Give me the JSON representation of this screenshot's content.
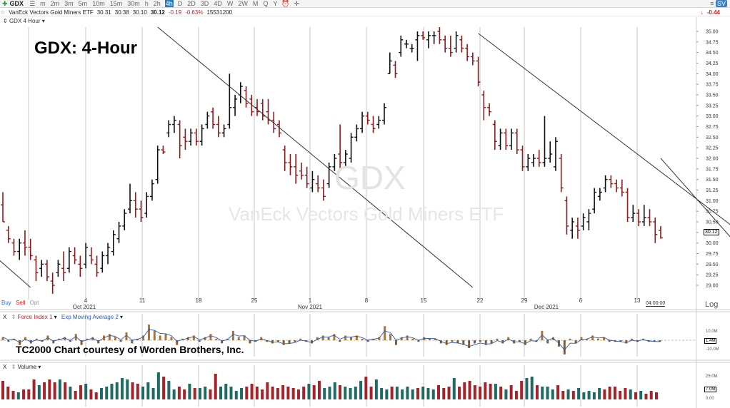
{
  "toolbar": {
    "symbol": "GDX",
    "intervals": [
      "m",
      "2m",
      "3m",
      "5m",
      "10m",
      "15m",
      "30m",
      "h",
      "2h",
      "4h",
      "D",
      "2D",
      "3D",
      "4D",
      "W",
      "2W",
      "M",
      "Q",
      "Y"
    ],
    "selected_interval": "4h",
    "right_badge": "SV",
    "right_change": "-0.44"
  },
  "quote": {
    "name": "VanEck Vectors Gold Miners ETF",
    "open": "30.31",
    "high": "30.38",
    "low": "30.10",
    "last": "30.12",
    "change": "-0.19",
    "change_pct": "-0.63%",
    "volume": "15531200"
  },
  "price_panel": {
    "label": "GDX 4 Hour",
    "headline": "GDX:  4-Hour",
    "watermark_symbol": "GDX",
    "watermark_name": "VanEck Vectors Gold Miners ETF",
    "last_price_tag": "30.12",
    "time_tag": "04:00:00",
    "scale_mode": "Log",
    "buy_label": "Buy",
    "sell_label": "Sell",
    "opt_label": "Opt"
  },
  "force_panel": {
    "close_label": "X",
    "indicator": "Force Index 1",
    "ma": "Exp Moving Average 2",
    "credit": "TC2000 Chart courtesy of Worden Brothers, Inc.",
    "axis_labels": [
      "10.0M",
      "1.4M",
      "-10.0M"
    ]
  },
  "volume_panel": {
    "close_label": "X",
    "indicator": "Volume",
    "axis_labels": [
      "25.0M",
      "7.0M",
      "0.00"
    ]
  },
  "colors": {
    "up_bar": "#111111",
    "down_bar": "#8b1a1a",
    "vol_up": "#1f6b63",
    "vol_down": "#a3252b",
    "trendline": "#333333",
    "grid": "#b8b8b8"
  },
  "chart_data": {
    "type": "ohlc",
    "title": "GDX:  4-Hour",
    "ylim": [
      29.0,
      35.1
    ],
    "yticks": [
      "35.00",
      "34.75",
      "34.50",
      "34.25",
      "34.00",
      "33.75",
      "33.50",
      "33.25",
      "33.00",
      "32.75",
      "32.50",
      "32.25",
      "32.00",
      "31.75",
      "31.50",
      "31.25",
      "31.00",
      "30.75",
      "30.50",
      "30.25",
      "30.00",
      "29.75",
      "29.50",
      "29.25",
      "29.00"
    ],
    "xticks": [
      "4",
      "11",
      "18",
      "25",
      "1",
      "8",
      "15",
      "22",
      "29",
      "6",
      "13"
    ],
    "month_labels": [
      "Oct 2021",
      "Nov 2021",
      "Dec 2021"
    ],
    "bars": [
      {
        "o": 30.9,
        "h": 31.2,
        "l": 30.5,
        "c": 30.5
      },
      {
        "o": 30.3,
        "h": 30.4,
        "l": 30.0,
        "c": 30.1
      },
      {
        "o": 30.0,
        "h": 30.1,
        "l": 29.7,
        "c": 29.8
      },
      {
        "o": 29.8,
        "h": 30.1,
        "l": 29.6,
        "c": 30.0
      },
      {
        "o": 30.0,
        "h": 30.3,
        "l": 29.7,
        "c": 29.9
      },
      {
        "o": 29.9,
        "h": 30.1,
        "l": 29.6,
        "c": 29.7
      },
      {
        "o": 29.6,
        "h": 29.7,
        "l": 29.1,
        "c": 29.3
      },
      {
        "o": 29.4,
        "h": 29.6,
        "l": 29.2,
        "c": 29.5
      },
      {
        "o": 29.5,
        "h": 29.6,
        "l": 29.1,
        "c": 29.2
      },
      {
        "o": 29.1,
        "h": 29.3,
        "l": 28.8,
        "c": 29.0
      },
      {
        "o": 29.3,
        "h": 29.6,
        "l": 29.2,
        "c": 29.5
      },
      {
        "o": 29.4,
        "h": 29.8,
        "l": 29.1,
        "c": 29.3
      },
      {
        "o": 29.4,
        "h": 29.9,
        "l": 29.3,
        "c": 29.8
      },
      {
        "o": 29.7,
        "h": 29.9,
        "l": 29.5,
        "c": 29.6
      },
      {
        "o": 29.5,
        "h": 29.7,
        "l": 29.2,
        "c": 29.4
      },
      {
        "o": 29.5,
        "h": 30.0,
        "l": 29.4,
        "c": 29.9
      },
      {
        "o": 29.7,
        "h": 29.9,
        "l": 29.5,
        "c": 29.6
      },
      {
        "o": 29.5,
        "h": 29.7,
        "l": 29.2,
        "c": 29.3
      },
      {
        "o": 29.4,
        "h": 29.8,
        "l": 29.3,
        "c": 29.7
      },
      {
        "o": 29.7,
        "h": 30.0,
        "l": 29.5,
        "c": 29.9
      },
      {
        "o": 29.8,
        "h": 30.3,
        "l": 29.7,
        "c": 30.2
      },
      {
        "o": 30.1,
        "h": 30.5,
        "l": 30.0,
        "c": 30.4
      },
      {
        "o": 30.4,
        "h": 30.8,
        "l": 30.3,
        "c": 30.7
      },
      {
        "o": 30.8,
        "h": 31.4,
        "l": 30.7,
        "c": 31.0
      },
      {
        "o": 31.0,
        "h": 31.2,
        "l": 30.6,
        "c": 30.8
      },
      {
        "o": 30.8,
        "h": 31.0,
        "l": 30.5,
        "c": 30.6
      },
      {
        "o": 30.7,
        "h": 31.2,
        "l": 30.6,
        "c": 31.1
      },
      {
        "o": 31.1,
        "h": 31.5,
        "l": 31.0,
        "c": 31.4
      },
      {
        "o": 31.5,
        "h": 32.3,
        "l": 31.4,
        "c": 32.2
      },
      {
        "o": 32.2,
        "h": 32.3,
        "l": 32.1,
        "c": 32.15
      },
      {
        "o": 32.6,
        "h": 32.9,
        "l": 32.5,
        "c": 32.8
      },
      {
        "o": 32.8,
        "h": 33.0,
        "l": 32.6,
        "c": 32.9
      },
      {
        "o": 32.8,
        "h": 32.9,
        "l": 32.0,
        "c": 32.3
      },
      {
        "o": 32.5,
        "h": 32.7,
        "l": 32.2,
        "c": 32.4
      },
      {
        "o": 32.4,
        "h": 32.7,
        "l": 32.3,
        "c": 32.6
      },
      {
        "o": 32.6,
        "h": 32.7,
        "l": 32.3,
        "c": 32.4
      },
      {
        "o": 32.4,
        "h": 32.8,
        "l": 32.3,
        "c": 32.7
      },
      {
        "o": 32.8,
        "h": 33.1,
        "l": 32.7,
        "c": 33.0
      },
      {
        "o": 33.1,
        "h": 33.2,
        "l": 32.7,
        "c": 32.8
      },
      {
        "o": 32.8,
        "h": 33.0,
        "l": 32.5,
        "c": 32.6
      },
      {
        "o": 32.6,
        "h": 32.8,
        "l": 32.5,
        "c": 32.7
      },
      {
        "o": 32.8,
        "h": 34.0,
        "l": 32.7,
        "c": 33.2
      },
      {
        "o": 33.2,
        "h": 33.5,
        "l": 33.0,
        "c": 33.4
      },
      {
        "o": 33.5,
        "h": 33.8,
        "l": 33.3,
        "c": 33.7
      },
      {
        "o": 33.6,
        "h": 33.7,
        "l": 33.2,
        "c": 33.3
      },
      {
        "o": 33.4,
        "h": 33.5,
        "l": 33.0,
        "c": 33.1
      },
      {
        "o": 33.2,
        "h": 33.4,
        "l": 33.0,
        "c": 33.1
      },
      {
        "o": 33.3,
        "h": 33.4,
        "l": 32.9,
        "c": 33.0
      },
      {
        "o": 33.1,
        "h": 33.4,
        "l": 32.8,
        "c": 32.9
      },
      {
        "o": 32.9,
        "h": 33.1,
        "l": 32.6,
        "c": 32.7
      },
      {
        "o": 32.8,
        "h": 32.9,
        "l": 32.5,
        "c": 32.6
      },
      {
        "o": 32.2,
        "h": 32.3,
        "l": 31.7,
        "c": 31.9
      },
      {
        "o": 31.9,
        "h": 32.1,
        "l": 31.6,
        "c": 31.8
      },
      {
        "o": 31.8,
        "h": 32.1,
        "l": 31.4,
        "c": 31.6
      },
      {
        "o": 31.7,
        "h": 31.9,
        "l": 31.5,
        "c": 31.6
      },
      {
        "o": 31.6,
        "h": 31.8,
        "l": 31.3,
        "c": 31.4
      },
      {
        "o": 31.3,
        "h": 31.7,
        "l": 31.2,
        "c": 31.5
      },
      {
        "o": 31.4,
        "h": 31.6,
        "l": 31.2,
        "c": 31.3
      },
      {
        "o": 31.3,
        "h": 31.5,
        "l": 31.0,
        "c": 31.1
      },
      {
        "o": 31.4,
        "h": 31.9,
        "l": 31.3,
        "c": 31.8
      },
      {
        "o": 31.8,
        "h": 32.1,
        "l": 31.7,
        "c": 32.0
      },
      {
        "o": 32.1,
        "h": 32.8,
        "l": 31.7,
        "c": 31.9
      },
      {
        "o": 31.9,
        "h": 32.2,
        "l": 31.8,
        "c": 32.1
      },
      {
        "o": 32.0,
        "h": 32.6,
        "l": 31.9,
        "c": 32.5
      },
      {
        "o": 32.5,
        "h": 32.8,
        "l": 32.4,
        "c": 32.7
      },
      {
        "o": 32.7,
        "h": 33.1,
        "l": 32.6,
        "c": 33.0
      },
      {
        "o": 33.0,
        "h": 33.1,
        "l": 32.8,
        "c": 32.9
      },
      {
        "o": 32.8,
        "h": 33.0,
        "l": 32.6,
        "c": 32.7
      },
      {
        "o": 32.8,
        "h": 33.0,
        "l": 32.7,
        "c": 32.9
      },
      {
        "o": 32.9,
        "h": 33.3,
        "l": 32.8,
        "c": 33.2
      },
      {
        "o": 34.0,
        "h": 34.5,
        "l": 34.0,
        "c": 34.3
      },
      {
        "o": 34.2,
        "h": 34.3,
        "l": 33.9,
        "c": 34.0
      },
      {
        "o": 34.5,
        "h": 34.9,
        "l": 34.4,
        "c": 34.8
      },
      {
        "o": 34.7,
        "h": 34.8,
        "l": 34.6,
        "c": 34.7
      },
      {
        "o": 34.6,
        "h": 34.7,
        "l": 34.5,
        "c": 34.6
      },
      {
        "o": 34.8,
        "h": 35.0,
        "l": 34.3,
        "c": 34.9
      },
      {
        "o": 34.9,
        "h": 35.0,
        "l": 34.8,
        "c": 34.85
      },
      {
        "o": 34.8,
        "h": 35.0,
        "l": 34.6,
        "c": 34.9
      },
      {
        "o": 34.9,
        "h": 35.0,
        "l": 34.7,
        "c": 34.9
      },
      {
        "o": 35.0,
        "h": 35.1,
        "l": 34.7,
        "c": 34.8
      },
      {
        "o": 34.8,
        "h": 34.9,
        "l": 34.5,
        "c": 34.6
      },
      {
        "o": 34.6,
        "h": 34.9,
        "l": 34.4,
        "c": 34.5
      },
      {
        "o": 34.6,
        "h": 35.0,
        "l": 34.5,
        "c": 34.9
      },
      {
        "o": 34.8,
        "h": 34.9,
        "l": 34.5,
        "c": 34.6
      },
      {
        "o": 34.6,
        "h": 34.7,
        "l": 34.3,
        "c": 34.4
      },
      {
        "o": 34.4,
        "h": 34.5,
        "l": 34.2,
        "c": 34.3
      },
      {
        "o": 34.3,
        "h": 34.4,
        "l": 33.7,
        "c": 33.8
      },
      {
        "o": 33.5,
        "h": 33.6,
        "l": 32.9,
        "c": 33.2
      },
      {
        "o": 33.2,
        "h": 33.3,
        "l": 33.0,
        "c": 33.1
      },
      {
        "o": 32.8,
        "h": 32.9,
        "l": 32.2,
        "c": 32.4
      },
      {
        "o": 32.3,
        "h": 32.7,
        "l": 32.2,
        "c": 32.6
      },
      {
        "o": 32.6,
        "h": 32.7,
        "l": 32.2,
        "c": 32.3
      },
      {
        "o": 32.3,
        "h": 32.7,
        "l": 32.2,
        "c": 32.6
      },
      {
        "o": 32.6,
        "h": 32.7,
        "l": 32.1,
        "c": 32.2
      },
      {
        "o": 32.2,
        "h": 32.3,
        "l": 31.7,
        "c": 31.8
      },
      {
        "o": 31.8,
        "h": 32.1,
        "l": 31.7,
        "c": 32.0
      },
      {
        "o": 31.9,
        "h": 32.1,
        "l": 31.8,
        "c": 32.0
      },
      {
        "o": 32.0,
        "h": 32.2,
        "l": 31.8,
        "c": 31.9
      },
      {
        "o": 31.9,
        "h": 33.0,
        "l": 31.8,
        "c": 32.0
      },
      {
        "o": 32.0,
        "h": 32.4,
        "l": 31.9,
        "c": 32.1
      },
      {
        "o": 31.8,
        "h": 32.5,
        "l": 31.7,
        "c": 32.4
      },
      {
        "o": 32.0,
        "h": 32.1,
        "l": 31.2,
        "c": 31.3
      },
      {
        "o": 31.0,
        "h": 31.1,
        "l": 30.2,
        "c": 30.4
      },
      {
        "o": 30.3,
        "h": 30.6,
        "l": 30.1,
        "c": 30.5
      },
      {
        "o": 30.4,
        "h": 30.6,
        "l": 30.1,
        "c": 30.3
      },
      {
        "o": 30.4,
        "h": 30.7,
        "l": 30.3,
        "c": 30.6
      },
      {
        "o": 30.5,
        "h": 30.8,
        "l": 30.3,
        "c": 30.7
      },
      {
        "o": 30.8,
        "h": 31.3,
        "l": 30.7,
        "c": 31.2
      },
      {
        "o": 31.1,
        "h": 31.3,
        "l": 31.0,
        "c": 31.2
      },
      {
        "o": 31.3,
        "h": 31.6,
        "l": 31.2,
        "c": 31.5
      },
      {
        "o": 31.5,
        "h": 31.6,
        "l": 31.3,
        "c": 31.4
      },
      {
        "o": 31.4,
        "h": 31.5,
        "l": 31.2,
        "c": 31.3
      },
      {
        "o": 31.3,
        "h": 31.5,
        "l": 31.1,
        "c": 31.2
      },
      {
        "o": 31.2,
        "h": 31.3,
        "l": 30.5,
        "c": 30.6
      },
      {
        "o": 30.6,
        "h": 30.9,
        "l": 30.5,
        "c": 30.7
      },
      {
        "o": 30.7,
        "h": 30.8,
        "l": 30.4,
        "c": 30.5
      },
      {
        "o": 30.5,
        "h": 30.9,
        "l": 30.4,
        "c": 30.6
      },
      {
        "o": 30.6,
        "h": 30.8,
        "l": 30.4,
        "c": 30.5
      },
      {
        "o": 30.5,
        "h": 30.6,
        "l": 30.0,
        "c": 30.2
      },
      {
        "o": 30.3,
        "h": 30.4,
        "l": 30.1,
        "c": 30.12
      }
    ],
    "trendlines": [
      {
        "from": [
          -2,
          29.75
        ],
        "to": [
          5,
          28.95
        ]
      },
      {
        "from": [
          28,
          35.1
        ],
        "to": [
          85,
          28.95
        ]
      },
      {
        "from": [
          86,
          34.95
        ],
        "to": [
          139,
          29.7
        ]
      },
      {
        "from": [
          119,
          32.0
        ],
        "to": [
          139,
          29.05
        ]
      }
    ],
    "force_index": [
      2,
      -1,
      1,
      -3,
      2,
      -2,
      1,
      -1,
      3,
      -2,
      1,
      2,
      -1,
      4,
      -3,
      1,
      2,
      -2,
      3,
      4,
      2,
      -1,
      5,
      -2,
      1,
      3,
      10,
      6,
      3,
      4,
      2,
      -3,
      1,
      2,
      3,
      -1,
      2,
      4,
      1,
      -2,
      1,
      6,
      2,
      3,
      -2,
      -1,
      2,
      -1,
      -2,
      -1,
      -3,
      -2,
      -1,
      1,
      -1,
      -2,
      2,
      3,
      2,
      4,
      -1,
      3,
      2,
      3,
      1,
      -1,
      1,
      2,
      9,
      4,
      -3,
      2,
      3,
      1,
      -1,
      2,
      1,
      1,
      -2,
      -3,
      -1,
      -2,
      -3,
      -5,
      -2,
      -1,
      -3,
      -2,
      1,
      -2,
      2,
      -2,
      -1,
      -3,
      1,
      -1,
      6,
      -2,
      2,
      -4,
      -9,
      1,
      -2,
      2,
      1,
      3,
      1,
      2,
      -1,
      -1,
      -1,
      -2,
      1,
      -1,
      1,
      -1,
      -1,
      -1
    ],
    "volume": [
      13,
      9,
      6,
      5,
      7,
      7,
      14,
      10,
      12,
      14,
      12,
      14,
      12,
      9,
      6,
      10,
      11,
      7,
      5,
      8,
      9,
      11,
      12,
      15,
      14,
      12,
      11,
      9,
      12,
      8,
      19,
      16,
      13,
      7,
      9,
      7,
      11,
      8,
      8,
      9,
      7,
      18,
      9,
      11,
      9,
      6,
      8,
      9,
      11,
      9,
      7,
      12,
      9,
      8,
      10,
      9,
      8,
      7,
      9,
      11,
      10,
      13,
      8,
      9,
      12,
      10,
      9,
      8,
      9,
      13,
      16,
      9,
      14,
      8,
      7,
      9,
      9,
      7,
      9,
      7,
      8,
      9,
      8,
      7,
      10,
      8,
      9,
      15,
      9,
      12,
      13,
      10,
      9,
      12,
      11,
      11,
      9,
      7,
      10,
      6,
      13,
      15,
      16,
      10,
      9,
      9,
      7,
      10,
      6,
      7,
      6,
      8,
      5,
      6,
      5,
      8,
      7,
      9,
      9,
      6,
      8,
      7,
      5,
      6,
      4,
      6,
      5
    ]
  }
}
